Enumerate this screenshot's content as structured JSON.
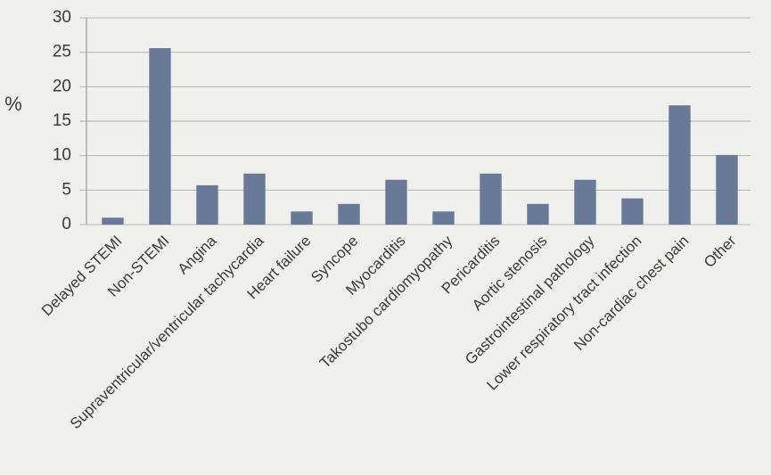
{
  "chart_data": {
    "type": "bar",
    "ylabel": "%",
    "categories": [
      "Delayed STEMI",
      "Non-STEMI",
      "Angina",
      "Supraventricular/ventricular tachycardia",
      "Heart failure",
      "Syncope",
      "Myocarditis",
      "Takostubo cardiomyopathy",
      "Pericarditis",
      "Aortic stenosis",
      "Gastrointestinal pathology",
      "Lower respiratory tract infection",
      "Non-cardiac chest pain",
      "Other"
    ],
    "values": [
      1.0,
      25.6,
      5.7,
      7.4,
      1.9,
      3.0,
      6.5,
      1.9,
      7.4,
      3.0,
      6.5,
      3.8,
      17.3,
      10.1
    ],
    "color": "#687a97",
    "ylim": [
      0,
      30
    ],
    "yticks": [
      0,
      5,
      10,
      15,
      20,
      25,
      30
    ],
    "grid": true
  }
}
